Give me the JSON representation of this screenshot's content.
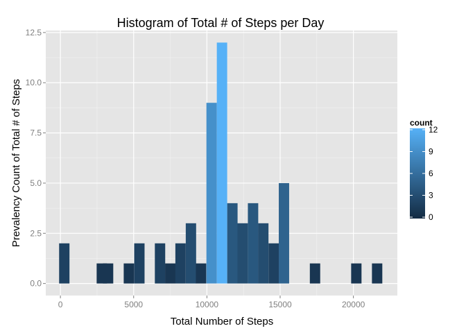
{
  "chart_data": {
    "type": "bar",
    "title": "Histogram of Total # of Steps per Day",
    "xlabel": "Total Number of Steps",
    "ylabel": "Prevalency Count of Total # of Steps",
    "bin_width": 707,
    "bins": [
      {
        "x": 265,
        "count": 2
      },
      {
        "x": 2827,
        "count": 1
      },
      {
        "x": 3253,
        "count": 1
      },
      {
        "x": 4674,
        "count": 1
      },
      {
        "x": 5390,
        "count": 2
      },
      {
        "x": 6800,
        "count": 2
      },
      {
        "x": 7500,
        "count": 1
      },
      {
        "x": 8200,
        "count": 2
      },
      {
        "x": 8910,
        "count": 3
      },
      {
        "x": 9600,
        "count": 1
      },
      {
        "x": 10320,
        "count": 9
      },
      {
        "x": 11030,
        "count": 12
      },
      {
        "x": 11740,
        "count": 4
      },
      {
        "x": 12440,
        "count": 3
      },
      {
        "x": 13150,
        "count": 4
      },
      {
        "x": 13850,
        "count": 3
      },
      {
        "x": 14560,
        "count": 2
      },
      {
        "x": 15260,
        "count": 5
      },
      {
        "x": 17380,
        "count": 1
      },
      {
        "x": 20200,
        "count": 1
      },
      {
        "x": 21620,
        "count": 1
      }
    ],
    "xlim": [
      -1000,
      23000
    ],
    "ylim": [
      -0.6,
      12.6
    ],
    "x_ticks": [
      0,
      5000,
      10000,
      15000,
      20000
    ],
    "x_tick_labels": [
      "0",
      "5000",
      "10000",
      "15000",
      "20000"
    ],
    "y_ticks": [
      0,
      2.5,
      5,
      7.5,
      10,
      12.5
    ],
    "y_tick_labels": [
      "0.0",
      "2.5",
      "5.0",
      "7.5",
      "10.0",
      "12.5"
    ],
    "grid": true,
    "legend": {
      "title": "count",
      "placement": "right",
      "ticks": [
        0,
        3,
        6,
        9,
        12
      ],
      "tick_labels": [
        "0",
        "3",
        "6",
        "9",
        "12"
      ],
      "color_low": "#132b43",
      "color_high": "#56b1f7"
    },
    "colors": {
      "panel_background": "#e5e5e5",
      "grid_major": "#ffffff",
      "grid_minor": "#f2f2f2"
    }
  }
}
